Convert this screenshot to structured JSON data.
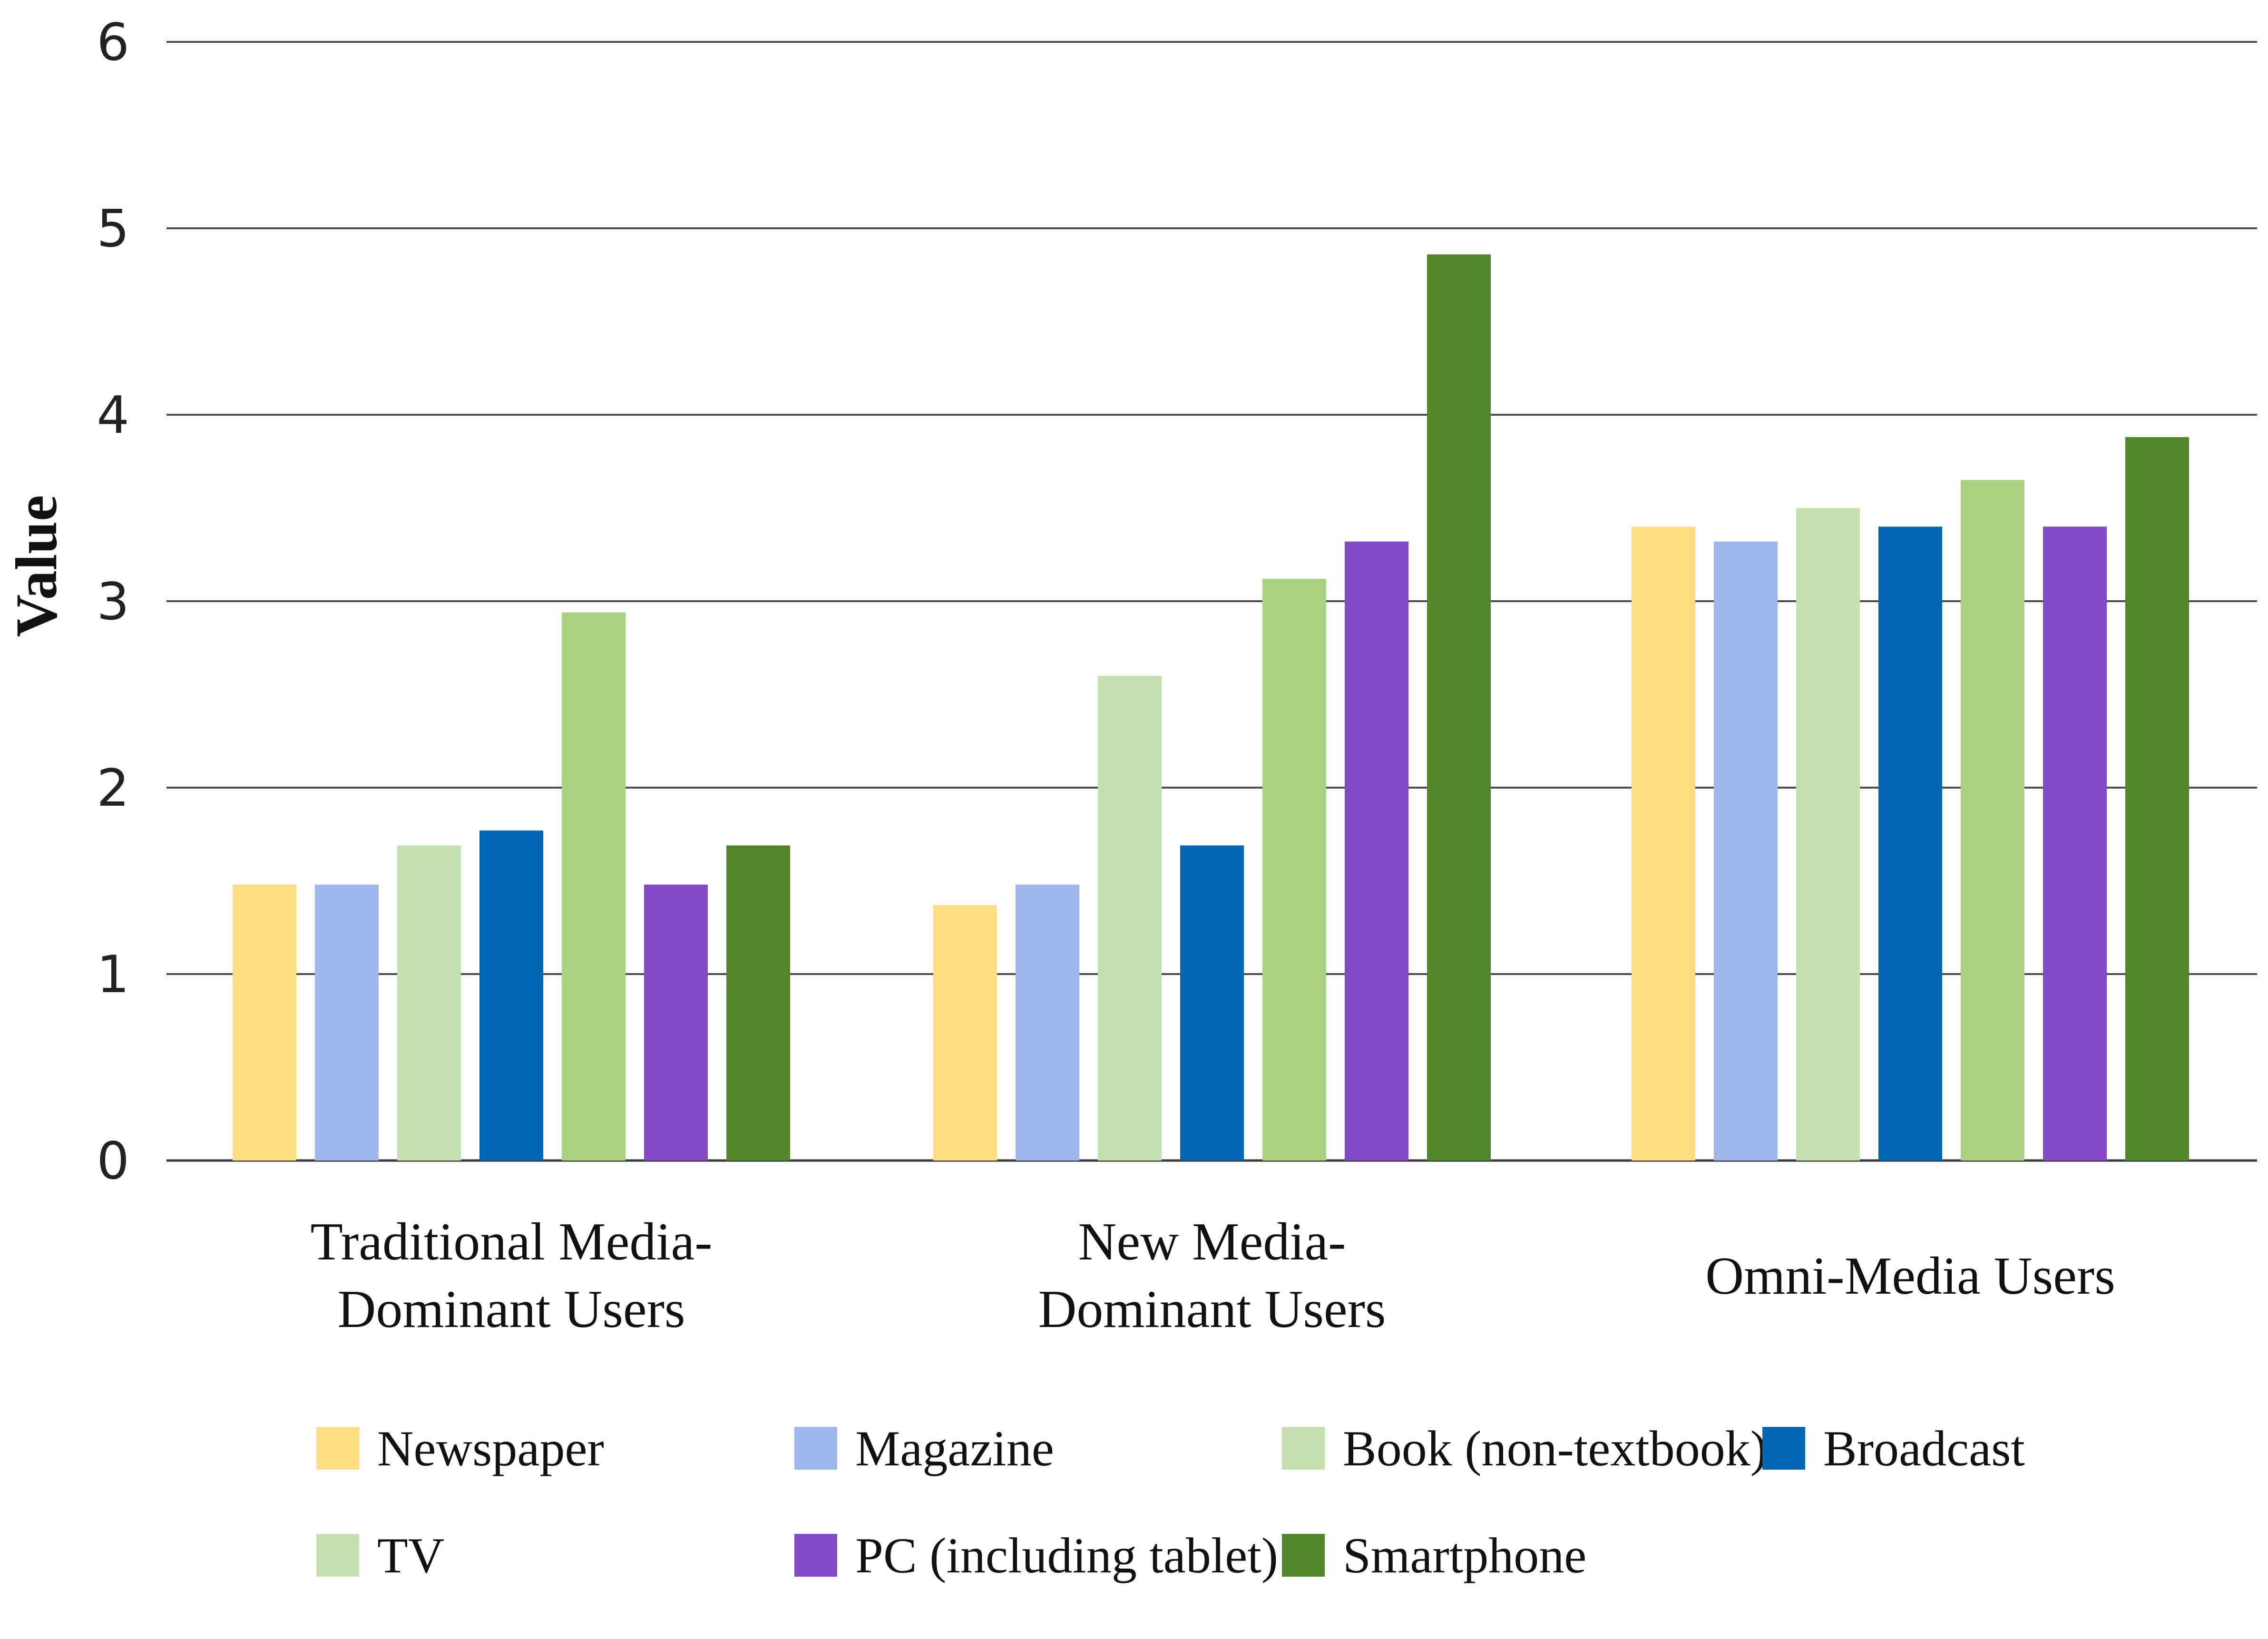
{
  "chart_data": {
    "type": "bar",
    "title": "",
    "xlabel": "",
    "ylabel": "Value",
    "ylim": [
      0,
      6
    ],
    "yticks": [
      0,
      1,
      2,
      3,
      4,
      5,
      6
    ],
    "grid": true,
    "legend_position": "bottom",
    "categories": [
      [
        "Traditional Media-",
        "Dominant Users"
      ],
      [
        "New Media-",
        "Dominant Users"
      ],
      [
        "Omni-Media Users"
      ]
    ],
    "series": [
      {
        "name": "Newspaper",
        "color": "#FFDD80",
        "values": [
          1.48,
          1.37,
          3.4
        ]
      },
      {
        "name": "Magazine",
        "color": "#9DB6EB",
        "values": [
          1.48,
          1.48,
          3.32
        ]
      },
      {
        "name": "Book (non-textbook)",
        "color": "#C4E1AF",
        "values": [
          1.69,
          2.6,
          3.5
        ]
      },
      {
        "name": "Broadcast",
        "color": "#0066B6",
        "values": [
          1.77,
          1.69,
          3.4
        ]
      },
      {
        "name": "TV",
        "color": "#A6D281",
        "values": [
          2.94,
          3.12,
          3.65
        ]
      },
      {
        "name": "PC (including tablet)",
        "color": "#8349C6",
        "values": [
          1.48,
          3.32,
          3.4
        ]
      },
      {
        "name": "Smartphone",
        "color": "#528428",
        "values": [
          1.69,
          4.86,
          3.88
        ]
      }
    ]
  }
}
